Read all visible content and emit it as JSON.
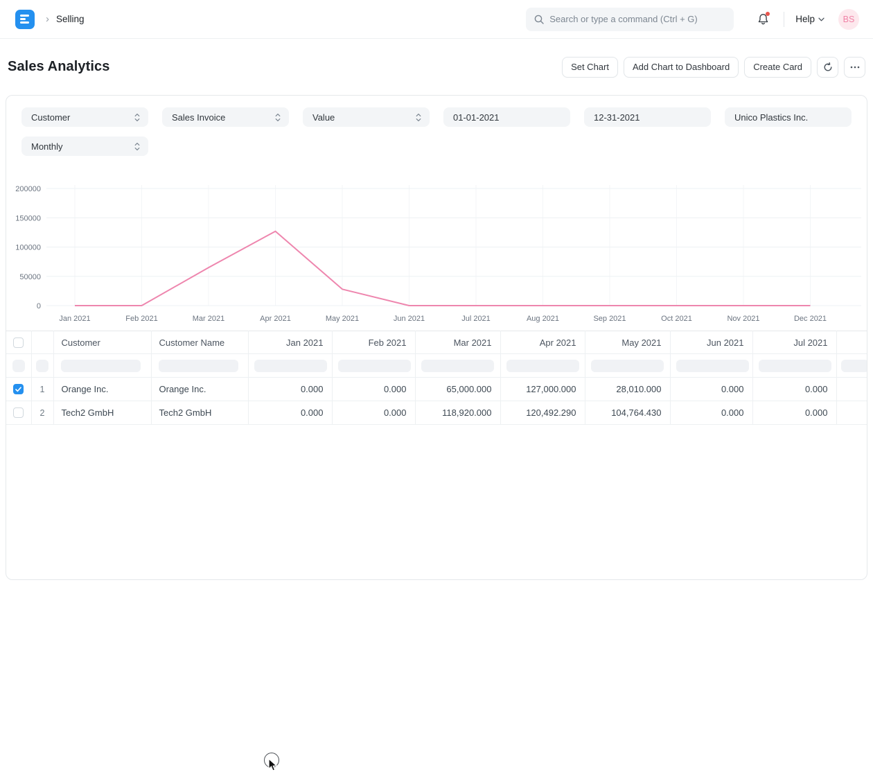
{
  "navbar": {
    "breadcrumb": "Selling",
    "search_placeholder": "Search or type a command (Ctrl + G)",
    "help_label": "Help",
    "avatar_initials": "BS"
  },
  "page": {
    "title": "Sales Analytics",
    "buttons": {
      "set_chart": "Set Chart",
      "add_chart": "Add Chart to Dashboard",
      "create_card": "Create Card"
    }
  },
  "filters": {
    "rows": [
      [
        {
          "label": "Customer",
          "type": "select"
        },
        {
          "label": "Sales Invoice",
          "type": "select"
        },
        {
          "label": "Value",
          "type": "select"
        },
        {
          "label": "01-01-2021",
          "type": "date"
        },
        {
          "label": "12-31-2021",
          "type": "date"
        },
        {
          "label": "Unico Plastics Inc.",
          "type": "link"
        }
      ],
      [
        {
          "label": "Monthly",
          "type": "select"
        }
      ]
    ]
  },
  "chart_data": {
    "type": "line",
    "x": [
      "Jan 2021",
      "Feb 2021",
      "Mar 2021",
      "Apr 2021",
      "May 2021",
      "Jun 2021",
      "Jul 2021",
      "Aug 2021",
      "Sep 2021",
      "Oct 2021",
      "Nov 2021",
      "Dec 2021"
    ],
    "series": [
      {
        "name": "Orange Inc.",
        "values": [
          0,
          0,
          65000,
          127000,
          28010,
          0,
          0,
          0,
          0,
          0,
          0,
          0
        ]
      }
    ],
    "y_ticks": [
      0,
      50000,
      100000,
      150000,
      200000
    ],
    "ylim": [
      0,
      200000
    ],
    "title": "",
    "xlabel": "",
    "ylabel": "",
    "grid": true,
    "legend_position": "none",
    "line_color": "#ee86ae"
  },
  "table": {
    "columns": [
      "",
      "",
      "Customer",
      "Customer Name",
      "Jan 2021",
      "Feb 2021",
      "Mar 2021",
      "Apr 2021",
      "May 2021",
      "Jun 2021",
      "Jul 2021",
      ""
    ],
    "rows": [
      {
        "checked": true,
        "index": "1",
        "customer": "Orange Inc.",
        "customer_name": "Orange Inc.",
        "values": [
          "0.000",
          "0.000",
          "65,000.000",
          "127,000.000",
          "28,010.000",
          "0.000",
          "0.000",
          ""
        ]
      },
      {
        "checked": false,
        "index": "2",
        "customer": "Tech2 GmbH",
        "customer_name": "Tech2 GmbH",
        "values": [
          "0.000",
          "0.000",
          "118,920.000",
          "120,492.290",
          "104,764.430",
          "0.000",
          "0.000",
          ""
        ]
      }
    ]
  },
  "colors": {
    "accent_blue": "#2490ef",
    "chart_line": "#ee86ae",
    "avatar_bg": "#fde8ed",
    "avatar_text": "#f083a7",
    "notification_dot": "#e8554d",
    "grid_line": "#eef1f4"
  }
}
